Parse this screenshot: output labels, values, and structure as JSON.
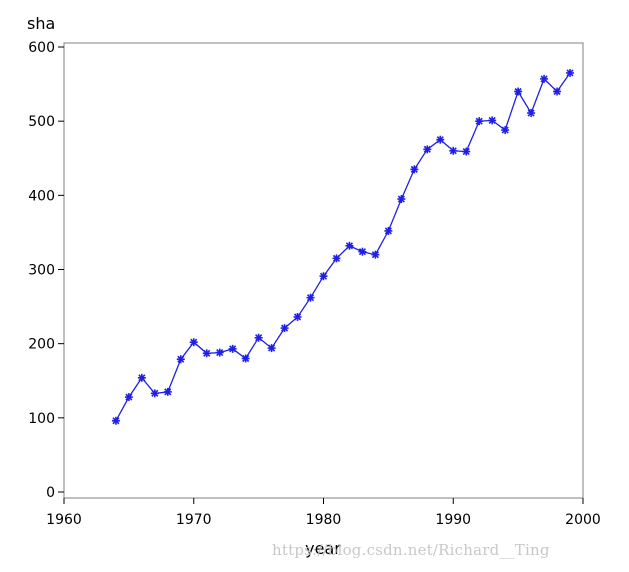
{
  "chart_data": {
    "type": "line",
    "title": "",
    "xlabel": "year",
    "ylabel": "sha",
    "xlim": [
      1960,
      2000
    ],
    "ylim": [
      0,
      600
    ],
    "xticks": [
      1960,
      1970,
      1980,
      1990,
      2000
    ],
    "yticks": [
      0,
      100,
      200,
      300,
      400,
      500,
      600
    ],
    "grid": false,
    "marker": "asterisk",
    "series": [
      {
        "color": "#1f1fe6",
        "x": [
          1964,
          1965,
          1966,
          1967,
          1968,
          1969,
          1970,
          1971,
          1972,
          1973,
          1974,
          1975,
          1976,
          1977,
          1978,
          1979,
          1980,
          1981,
          1982,
          1983,
          1984,
          1985,
          1986,
          1987,
          1988,
          1989,
          1990,
          1991,
          1992,
          1993,
          1994,
          1995,
          1996,
          1997,
          1998,
          1999
        ],
        "values": [
          96,
          128,
          154,
          133,
          135,
          179,
          202,
          187,
          188,
          193,
          180,
          208,
          194,
          221,
          236,
          262,
          291,
          315,
          332,
          324,
          320,
          352,
          395,
          435,
          462,
          475,
          460,
          459,
          500,
          501,
          488,
          540,
          511,
          557,
          540,
          565
        ]
      }
    ]
  },
  "watermark": "https://blog.csdn.net/Richard__Ting"
}
